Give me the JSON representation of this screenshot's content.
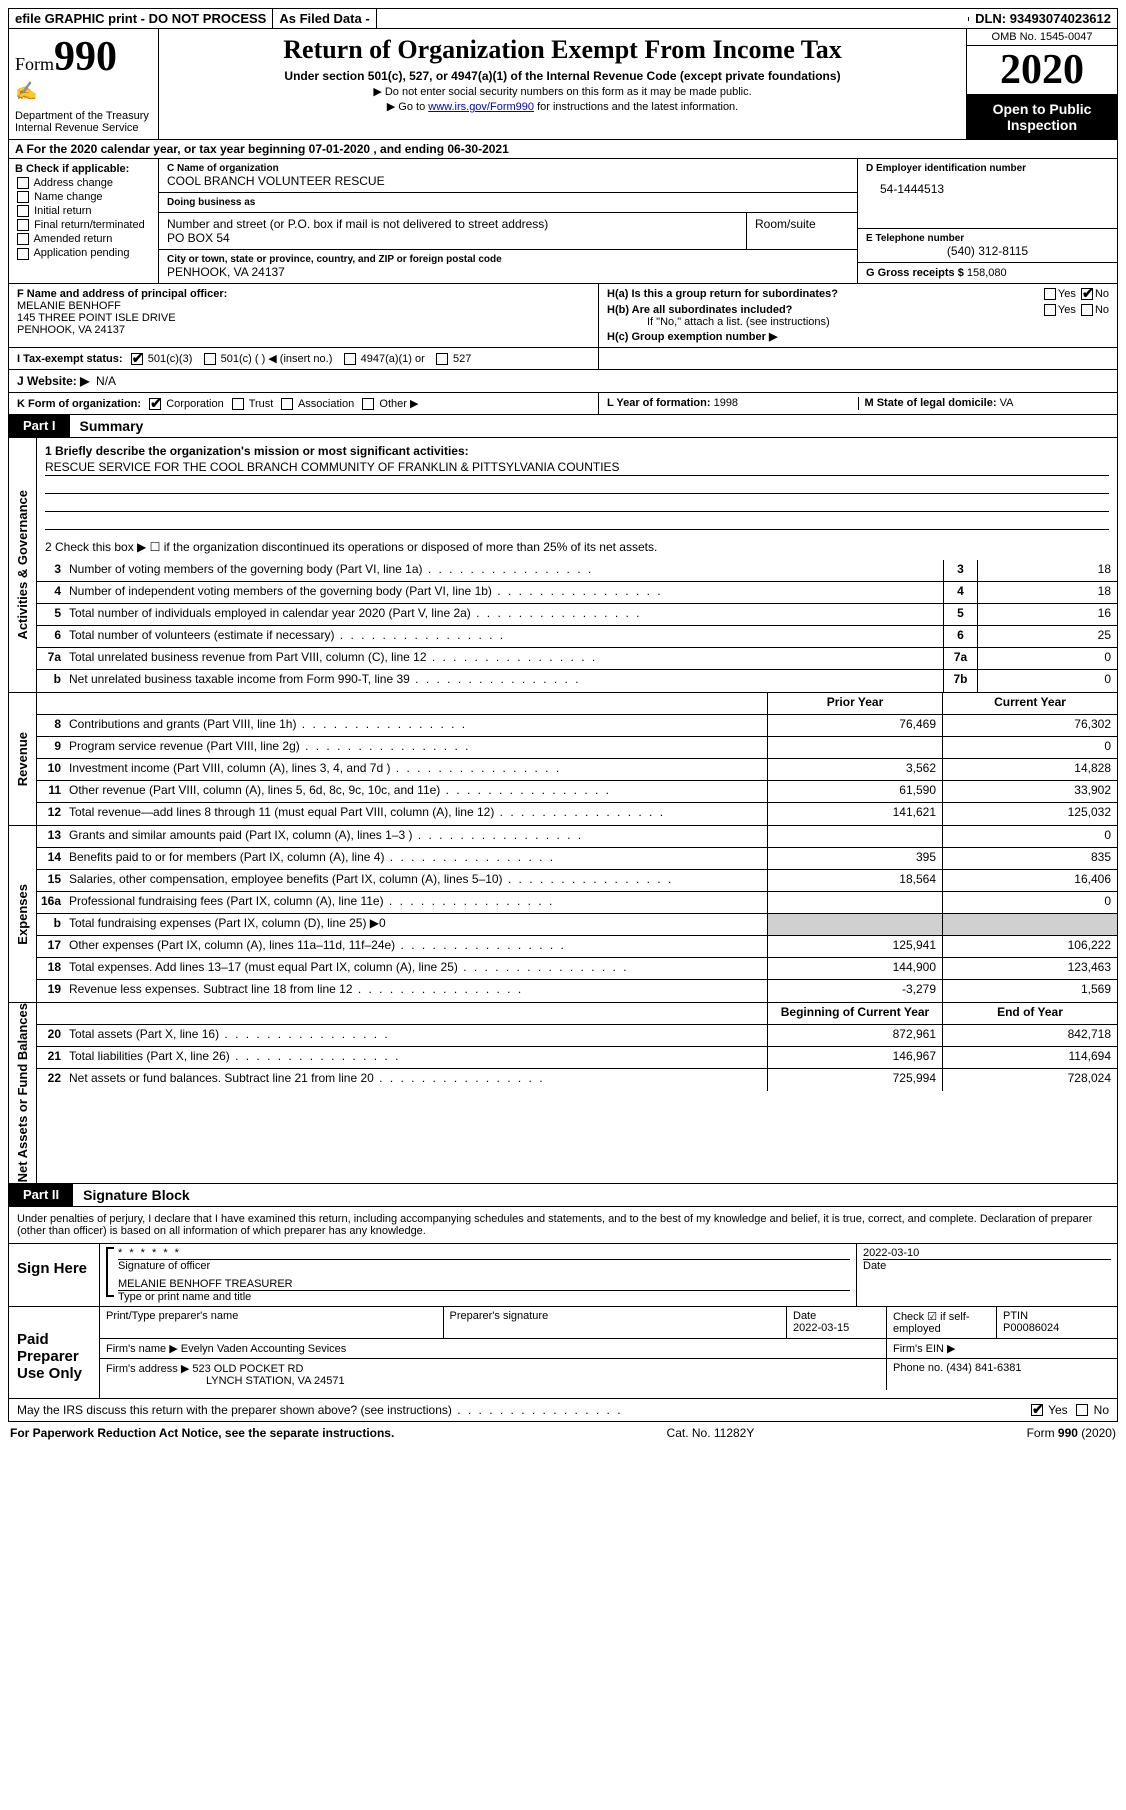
{
  "topbar": {
    "efile": "efile GRAPHIC print - DO NOT PROCESS",
    "asfiled": "As Filed Data -",
    "dln_label": "DLN:",
    "dln": "93493074023612"
  },
  "header": {
    "form_prefix": "Form",
    "form_num": "990",
    "dept": "Department of the Treasury\nInternal Revenue Service",
    "title": "Return of Organization Exempt From Income Tax",
    "subtitle": "Under section 501(c), 527, or 4947(a)(1) of the Internal Revenue Code (except private foundations)",
    "note1": "▶ Do not enter social security numbers on this form as it may be made public.",
    "note2_pre": "▶ Go to ",
    "note2_link": "www.irs.gov/Form990",
    "note2_post": " for instructions and the latest information.",
    "omb": "OMB No. 1545-0047",
    "year": "2020",
    "open": "Open to Public Inspection"
  },
  "rowA": "A   For the 2020 calendar year, or tax year beginning 07-01-2020   , and ending 06-30-2021",
  "colB": {
    "label": "B Check if applicable:",
    "opts": [
      "Address change",
      "Name change",
      "Initial return",
      "Final return/terminated",
      "Amended return",
      "Application pending"
    ]
  },
  "colC": {
    "name_label": "C Name of organization",
    "name": "COOL BRANCH VOLUNTEER RESCUE",
    "dba_label": "Doing business as",
    "dba": "",
    "street_label": "Number and street (or P.O. box if mail is not delivered to street address)",
    "street": "PO BOX 54",
    "room_label": "Room/suite",
    "room": "",
    "city_label": "City or town, state or province, country, and ZIP or foreign postal code",
    "city": "PENHOOK, VA  24137"
  },
  "colD": {
    "ein_label": "D Employer identification number",
    "ein": "54-1444513",
    "tel_label": "E Telephone number",
    "tel": "(540) 312-8115",
    "gross_label": "G Gross receipts $",
    "gross": "158,080"
  },
  "rowF": {
    "label": "F  Name and address of principal officer:",
    "name": "MELANIE BENHOFF",
    "addr1": "145 THREE POINT ISLE DRIVE",
    "addr2": "PENHOOK, VA  24137"
  },
  "rowH": {
    "a": "H(a)  Is this a group return for subordinates?",
    "a_yes": "Yes",
    "a_no": "No",
    "b": "H(b)  Are all subordinates included?",
    "b_yes": "Yes",
    "b_no": "No",
    "b_note": "If \"No,\" attach a list. (see instructions)",
    "c": "H(c)  Group exemption number ▶"
  },
  "rowI": {
    "label": "I   Tax-exempt status:",
    "o1": "501(c)(3)",
    "o2": "501(c) (  ) ◀ (insert no.)",
    "o3": "4947(a)(1) or",
    "o4": "527"
  },
  "rowJ": {
    "label": "J   Website: ▶",
    "val": "N/A"
  },
  "rowK": {
    "label": "K Form of organization:",
    "opts": [
      "Corporation",
      "Trust",
      "Association",
      "Other ▶"
    ]
  },
  "rowLM": {
    "l_label": "L Year of formation:",
    "l": "1998",
    "m_label": "M State of legal domicile:",
    "m": "VA"
  },
  "part1": {
    "label": "Part I",
    "title": "Summary"
  },
  "summary": {
    "q1_label": "1  Briefly describe the organization's mission or most significant activities:",
    "q1": "RESCUE SERVICE FOR THE COOL BRANCH COMMUNITY OF FRANKLIN & PITTSYLVANIA COUNTIES",
    "q2": "2   Check this box ▶ ☐  if the organization discontinued its operations or disposed of more than 25% of its net assets.",
    "rows": [
      {
        "n": "3",
        "d": "Number of voting members of the governing body (Part VI, line 1a)",
        "box": "3",
        "v": "18"
      },
      {
        "n": "4",
        "d": "Number of independent voting members of the governing body (Part VI, line 1b)",
        "box": "4",
        "v": "18"
      },
      {
        "n": "5",
        "d": "Total number of individuals employed in calendar year 2020 (Part V, line 2a)",
        "box": "5",
        "v": "16"
      },
      {
        "n": "6",
        "d": "Total number of volunteers (estimate if necessary)",
        "box": "6",
        "v": "25"
      },
      {
        "n": "7a",
        "d": "Total unrelated business revenue from Part VIII, column (C), line 12",
        "box": "7a",
        "v": "0"
      },
      {
        "n": "b",
        "d": "Net unrelated business taxable income from Form 990-T, line 39",
        "box": "7b",
        "v": "0"
      }
    ]
  },
  "revenue": {
    "side": "Revenue",
    "head_prior": "Prior Year",
    "head_curr": "Current Year",
    "rows": [
      {
        "n": "8",
        "d": "Contributions and grants (Part VIII, line 1h)",
        "p": "76,469",
        "c": "76,302"
      },
      {
        "n": "9",
        "d": "Program service revenue (Part VIII, line 2g)",
        "p": "",
        "c": "0"
      },
      {
        "n": "10",
        "d": "Investment income (Part VIII, column (A), lines 3, 4, and 7d )",
        "p": "3,562",
        "c": "14,828"
      },
      {
        "n": "11",
        "d": "Other revenue (Part VIII, column (A), lines 5, 6d, 8c, 9c, 10c, and 11e)",
        "p": "61,590",
        "c": "33,902"
      },
      {
        "n": "12",
        "d": "Total revenue—add lines 8 through 11 (must equal Part VIII, column (A), line 12)",
        "p": "141,621",
        "c": "125,032"
      }
    ]
  },
  "expenses": {
    "side": "Expenses",
    "rows": [
      {
        "n": "13",
        "d": "Grants and similar amounts paid (Part IX, column (A), lines 1–3 )",
        "p": "",
        "c": "0"
      },
      {
        "n": "14",
        "d": "Benefits paid to or for members (Part IX, column (A), line 4)",
        "p": "395",
        "c": "835"
      },
      {
        "n": "15",
        "d": "Salaries, other compensation, employee benefits (Part IX, column (A), lines 5–10)",
        "p": "18,564",
        "c": "16,406"
      },
      {
        "n": "16a",
        "d": "Professional fundraising fees (Part IX, column (A), line 11e)",
        "p": "",
        "c": "0"
      },
      {
        "n": "b",
        "d": "Total fundraising expenses (Part IX, column (D), line 25) ▶0",
        "p": "shade",
        "c": "shade"
      },
      {
        "n": "17",
        "d": "Other expenses (Part IX, column (A), lines 11a–11d, 11f–24e)",
        "p": "125,941",
        "c": "106,222"
      },
      {
        "n": "18",
        "d": "Total expenses. Add lines 13–17 (must equal Part IX, column (A), line 25)",
        "p": "144,900",
        "c": "123,463"
      },
      {
        "n": "19",
        "d": "Revenue less expenses. Subtract line 18 from line 12",
        "p": "-3,279",
        "c": "1,569"
      }
    ]
  },
  "netassets": {
    "side": "Net Assets or Fund Balances",
    "head_prior": "Beginning of Current Year",
    "head_curr": "End of Year",
    "rows": [
      {
        "n": "20",
        "d": "Total assets (Part X, line 16)",
        "p": "872,961",
        "c": "842,718"
      },
      {
        "n": "21",
        "d": "Total liabilities (Part X, line 26)",
        "p": "146,967",
        "c": "114,694"
      },
      {
        "n": "22",
        "d": "Net assets or fund balances. Subtract line 21 from line 20",
        "p": "725,994",
        "c": "728,024"
      }
    ]
  },
  "part2": {
    "label": "Part II",
    "title": "Signature Block"
  },
  "perjury": "Under penalties of perjury, I declare that I have examined this return, including accompanying schedules and statements, and to the best of my knowledge and belief, it is true, correct, and complete. Declaration of preparer (other than officer) is based on all information of which preparer has any knowledge.",
  "sign": {
    "here": "Sign Here",
    "stars": "* * * * * *",
    "sig_label": "Signature of officer",
    "date": "2022-03-10",
    "date_label": "Date",
    "name": "MELANIE BENHOFF TREASURER",
    "name_label": "Type or print name and title"
  },
  "preparer": {
    "side": "Paid Preparer Use Only",
    "h1": "Print/Type preparer's name",
    "h2": "Preparer's signature",
    "h3": "Date",
    "h3v": "2022-03-15",
    "h4": "Check ☑ if self-employed",
    "h5": "PTIN",
    "h5v": "P00086024",
    "firm_label": "Firm's name   ▶",
    "firm": "Evelyn Vaden Accounting Sevices",
    "ein_label": "Firm's EIN ▶",
    "ein": "",
    "addr_label": "Firm's address ▶",
    "addr1": "523 OLD POCKET RD",
    "addr2": "LYNCH STATION, VA  24571",
    "phone_label": "Phone no.",
    "phone": "(434) 841-6381"
  },
  "discuss": {
    "q": "May the IRS discuss this return with the preparer shown above? (see instructions)",
    "yes": "Yes",
    "no": "No"
  },
  "footer": {
    "left": "For Paperwork Reduction Act Notice, see the separate instructions.",
    "mid": "Cat. No. 11282Y",
    "right": "Form 990 (2020)"
  }
}
